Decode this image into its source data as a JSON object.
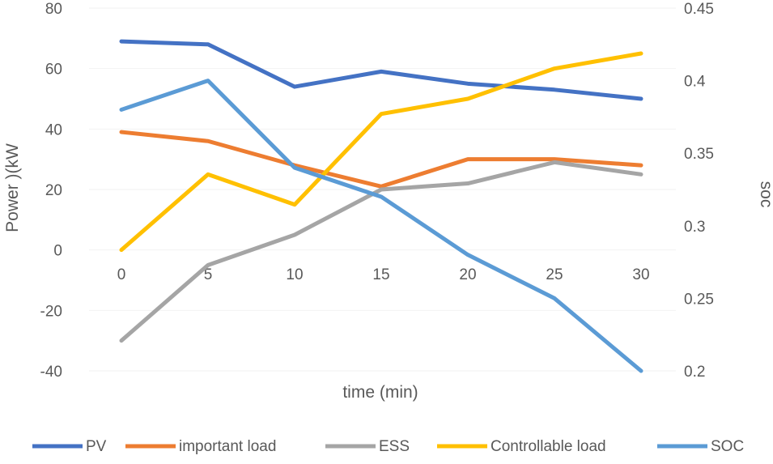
{
  "chart_data": {
    "type": "line",
    "title": "",
    "xlabel": "time (min)",
    "ylabel": "Power )(kW",
    "y2label": "soc",
    "categories": [
      "0",
      "5",
      "10",
      "15",
      "20",
      "25",
      "30"
    ],
    "ylim": [
      -40,
      80
    ],
    "y2lim": [
      0.2,
      0.45
    ],
    "y_ticks": [
      "-40",
      "-20",
      "0",
      "20",
      "40",
      "60",
      "80"
    ],
    "y2_ticks": [
      "0.2",
      "0.25",
      "0.3",
      "0.35",
      "0.4",
      "0.45"
    ],
    "series": [
      {
        "name": "PV",
        "axis": "left",
        "color": "#4472C4",
        "values": [
          69,
          68,
          54,
          59,
          55,
          53,
          50
        ]
      },
      {
        "name": "important load",
        "axis": "left",
        "color": "#ED7D31",
        "values": [
          39,
          36,
          28,
          21,
          30,
          30,
          28
        ]
      },
      {
        "name": "ESS",
        "axis": "left",
        "color": "#A5A5A5",
        "values": [
          -30,
          -5,
          5,
          20,
          22,
          29,
          25
        ]
      },
      {
        "name": "Controllable load",
        "axis": "left",
        "color": "#FFC000",
        "values": [
          0,
          25,
          15,
          45,
          50,
          60,
          65
        ]
      },
      {
        "name": "SOC",
        "axis": "right",
        "color": "#5B9BD5",
        "values": [
          0.38,
          0.4,
          0.34,
          0.32,
          0.28,
          0.25,
          0.2
        ]
      }
    ]
  }
}
